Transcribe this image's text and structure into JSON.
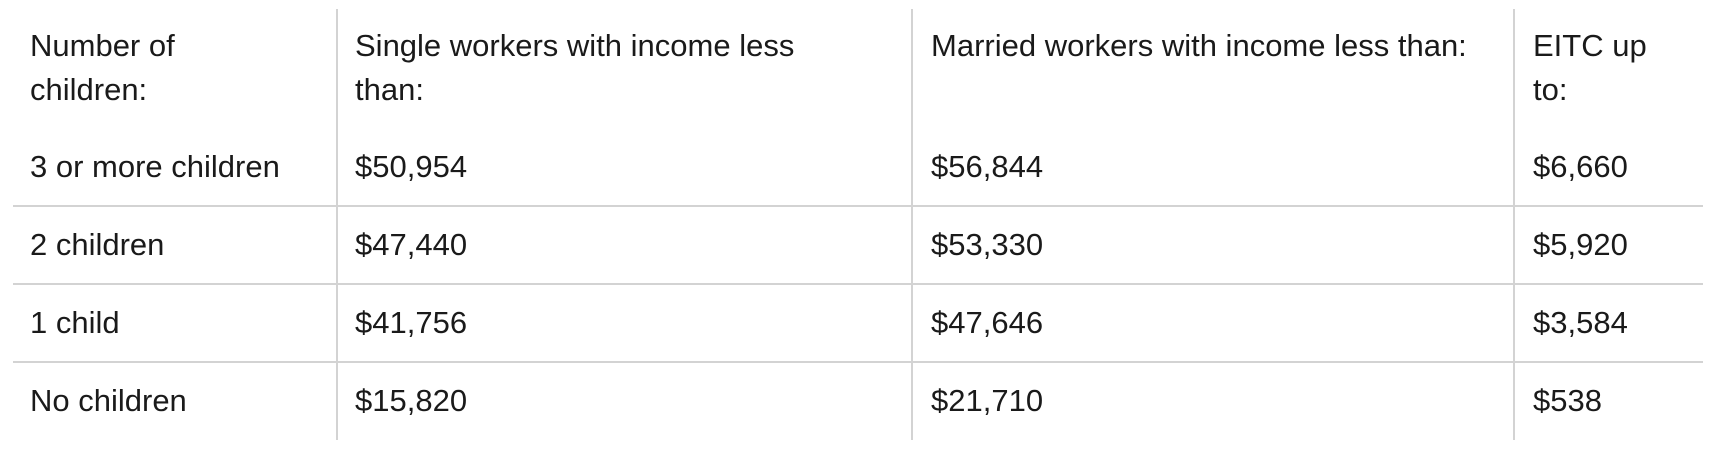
{
  "table": {
    "header": [
      "Number of children:",
      "Single workers with income less than:",
      "Married workers with income less than:",
      "EITC up to:"
    ],
    "rows": [
      [
        "3 or more children",
        "$50,954",
        "$56,844",
        "$6,660"
      ],
      [
        "2 children",
        "$47,440",
        "$53,330",
        "$5,920"
      ],
      [
        "1 child",
        "$41,756",
        "$47,646",
        "$3,584"
      ],
      [
        "No children",
        "$15,820",
        "$21,710",
        "$538"
      ]
    ]
  }
}
